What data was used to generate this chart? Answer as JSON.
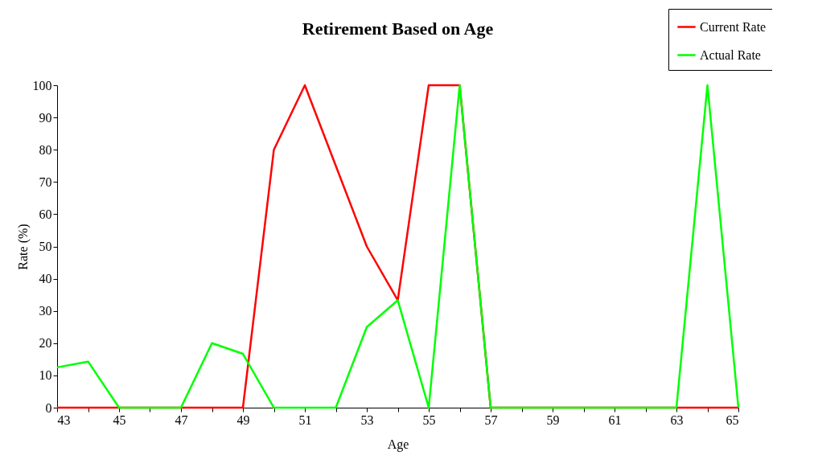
{
  "chart_data": {
    "type": "line",
    "title": "Retirement Based on Age",
    "xlabel": "Age",
    "ylabel": "Rate (%)",
    "x": [
      43,
      44,
      45,
      46,
      47,
      48,
      49,
      50,
      51,
      52,
      53,
      54,
      55,
      56,
      57,
      58,
      59,
      60,
      61,
      62,
      63,
      64,
      65
    ],
    "series": [
      {
        "name": "Current Rate",
        "color": "#ff0000",
        "values": [
          0,
          0,
          0,
          0,
          0,
          0,
          0,
          80,
          100,
          75,
          50,
          33.3,
          100,
          100,
          0,
          0,
          0,
          0,
          0,
          0,
          0,
          0,
          0
        ]
      },
      {
        "name": "Actual Rate",
        "color": "#00ff00",
        "values": [
          12.5,
          14.3,
          0,
          0,
          0,
          20,
          16.7,
          0,
          0,
          0,
          25,
          33.3,
          0,
          100,
          0,
          0,
          0,
          0,
          0,
          0,
          0,
          100,
          0
        ]
      }
    ],
    "xlim": [
      43,
      65
    ],
    "xticks": [
      43,
      {
        "value": 44,
        "label": null
      },
      45,
      {
        "value": 46,
        "label": null
      },
      47,
      {
        "value": 48,
        "label": null
      },
      49,
      {
        "value": 50,
        "label": null
      },
      51,
      {
        "value": 52,
        "label": null
      },
      53,
      {
        "value": 54,
        "label": null
      },
      55,
      {
        "value": 56,
        "label": null
      },
      57,
      {
        "value": 58,
        "label": null
      },
      59,
      {
        "value": 60,
        "label": null
      },
      61,
      {
        "value": 62,
        "label": null
      },
      63,
      {
        "value": 64,
        "label": null
      },
      65
    ],
    "ylim": [
      0,
      100
    ],
    "yticks": [
      0,
      10,
      20,
      30,
      40,
      50,
      60,
      70,
      80,
      90,
      100
    ],
    "grid": false,
    "legend": "top right",
    "marker": "none",
    "line_style": "solid"
  }
}
